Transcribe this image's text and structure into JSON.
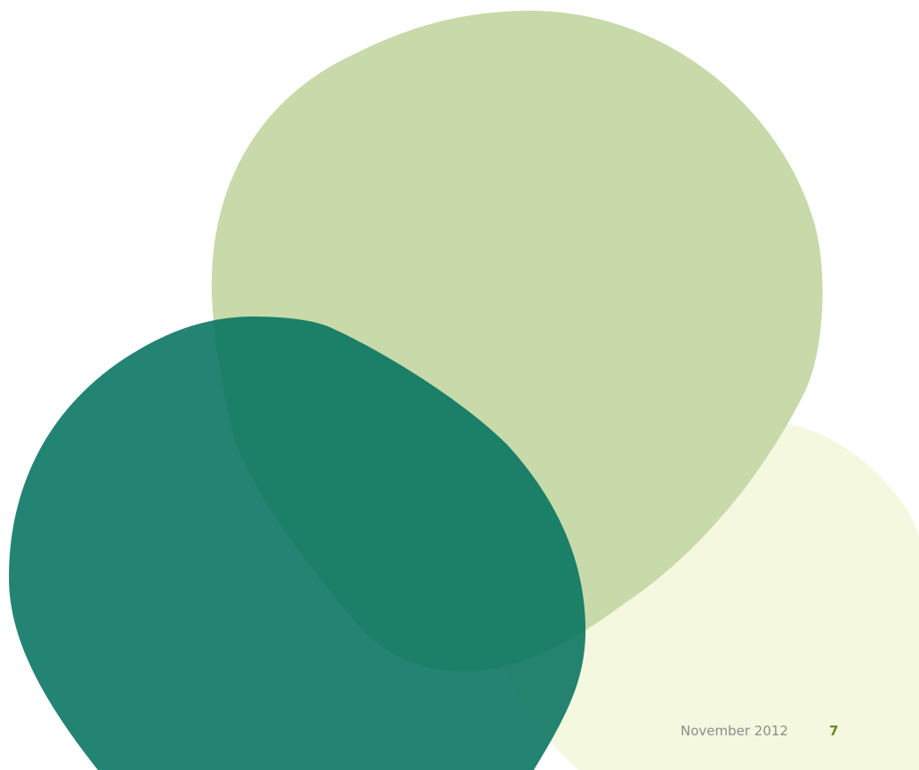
{
  "footer": {
    "date": "November 2012",
    "page_number": "7"
  }
}
